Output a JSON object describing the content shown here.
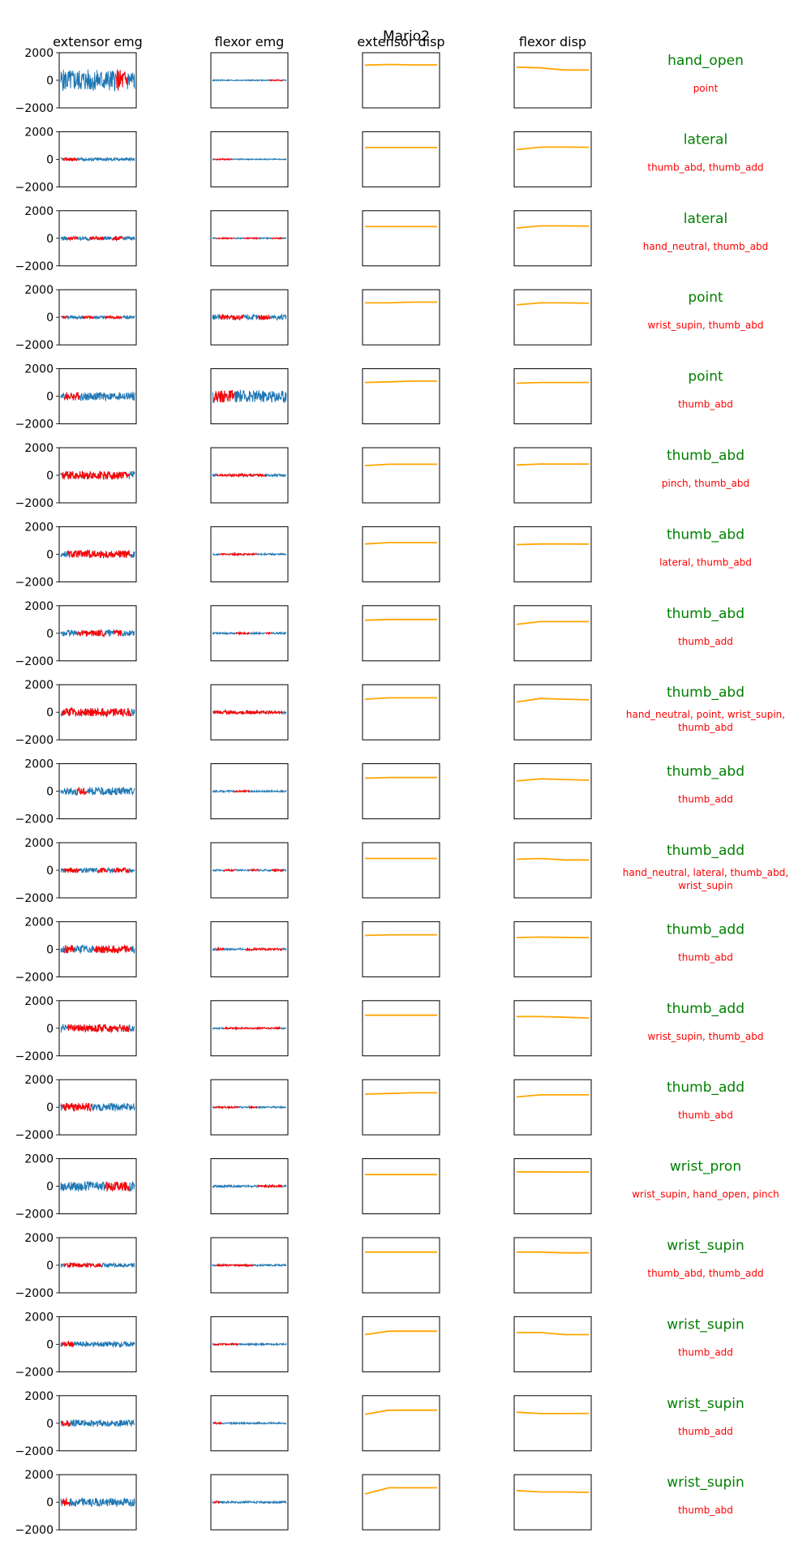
{
  "figure": {
    "title": "Mario2",
    "column_titles": [
      "extensor emg",
      "flexor emg",
      "extensor disp",
      "flexor disp"
    ]
  },
  "chart_data": {
    "type": "line",
    "title": "Mario2",
    "layout": "small-multiples grid, 19 rows x 4 columns plus per-row text annotations",
    "columns": [
      "extensor emg",
      "flexor emg",
      "extensor disp",
      "flexor disp"
    ],
    "ylim": [
      -2000,
      2000
    ],
    "yticks": [
      2000,
      0,
      -2000
    ],
    "ytick_labels": [
      "2000",
      "0",
      "−2000"
    ],
    "y_axis_shown_on": "extensor emg",
    "series_colors": {
      "emg": "#1f77b4",
      "emg_highlight": "#ff0000",
      "disp": "#ffa500",
      "predicted_label": "#008000",
      "other_labels": "#ff0000"
    },
    "rows": [
      {
        "predicted": "hand_open",
        "labels": "point",
        "ext_emg": {
          "amp": 800,
          "red": [
            [
              0.75,
              0.9
            ]
          ]
        },
        "flx_emg": {
          "amp": 40,
          "red": [
            [
              0.78,
              0.95
            ]
          ]
        },
        "ext_disp": [
          1100,
          1150,
          1120,
          1120
        ],
        "flx_disp": [
          950,
          900,
          750,
          750
        ]
      },
      {
        "predicted": "lateral",
        "labels": "thumb_abd, thumb_add",
        "ext_emg": {
          "amp": 120,
          "red": [
            [
              0.03,
              0.22
            ]
          ]
        },
        "flx_emg": {
          "amp": 40,
          "red": [
            [
              0.03,
              0.26
            ]
          ]
        },
        "ext_disp": [
          850,
          850,
          850,
          850
        ],
        "flx_disp": [
          700,
          880,
          880,
          870
        ]
      },
      {
        "predicted": "lateral",
        "labels": "hand_neutral, thumb_abd",
        "ext_emg": {
          "amp": 140,
          "red": [
            [
              0.1,
              0.22
            ],
            [
              0.4,
              0.58
            ],
            [
              0.7,
              0.85
            ]
          ]
        },
        "flx_emg": {
          "amp": 40,
          "red": [
            [
              0.05,
              0.3
            ],
            [
              0.42,
              0.62
            ],
            [
              0.8,
              0.95
            ]
          ]
        },
        "ext_disp": [
          850,
          850,
          850,
          850
        ],
        "flx_disp": [
          750,
          900,
          900,
          880
        ]
      },
      {
        "predicted": "point",
        "labels": "wrist_supin, thumb_abd",
        "ext_emg": {
          "amp": 110,
          "red": [
            [
              0.02,
              0.08
            ],
            [
              0.3,
              0.45
            ],
            [
              0.6,
              0.82
            ]
          ]
        },
        "flx_emg": {
          "amp": 200,
          "red": [
            [
              0.1,
              0.42
            ],
            [
              0.62,
              0.78
            ]
          ]
        },
        "ext_disp": [
          1050,
          1050,
          1100,
          1100
        ],
        "flx_disp": [
          900,
          1050,
          1050,
          1020
        ]
      },
      {
        "predicted": "point",
        "labels": "thumb_abd",
        "ext_emg": {
          "amp": 300,
          "red": [
            [
              0.05,
              0.25
            ]
          ]
        },
        "flx_emg": {
          "amp": 450,
          "red": [
            [
              0.02,
              0.3
            ]
          ]
        },
        "ext_disp": [
          1000,
          1050,
          1100,
          1100
        ],
        "flx_disp": [
          950,
          1000,
          1000,
          1000
        ]
      },
      {
        "predicted": "thumb_abd",
        "labels": "pinch, thumb_abd",
        "ext_emg": {
          "amp": 300,
          "red": [
            [
              0.02,
              0.92
            ]
          ]
        },
        "flx_emg": {
          "amp": 90,
          "red": [
            [
              0.05,
              0.72
            ]
          ]
        },
        "ext_disp": [
          700,
          800,
          800,
          800
        ],
        "flx_disp": [
          750,
          820,
          820,
          820
        ]
      },
      {
        "predicted": "thumb_abd",
        "labels": "lateral, thumb_abd",
        "ext_emg": {
          "amp": 280,
          "red": [
            [
              0.1,
              0.95
            ]
          ]
        },
        "flx_emg": {
          "amp": 60,
          "red": [
            [
              0.1,
              0.6
            ]
          ]
        },
        "ext_disp": [
          750,
          850,
          850,
          850
        ],
        "flx_disp": [
          700,
          750,
          750,
          740
        ]
      },
      {
        "predicted": "thumb_abd",
        "labels": "thumb_add",
        "ext_emg": {
          "amp": 230,
          "red": [
            [
              0.22,
              0.6
            ],
            [
              0.72,
              0.82
            ]
          ]
        },
        "flx_emg": {
          "amp": 60,
          "red": [
            [
              0.32,
              0.5
            ],
            [
              0.72,
              0.8
            ]
          ]
        },
        "ext_disp": [
          950,
          1000,
          1000,
          1000
        ],
        "flx_disp": [
          650,
          850,
          850,
          850
        ]
      },
      {
        "predicted": "thumb_abd",
        "labels": "hand_neutral, point, wrist_supin, thumb_abd",
        "ext_emg": {
          "amp": 300,
          "red": [
            [
              0.02,
              0.95
            ]
          ]
        },
        "flx_emg": {
          "amp": 120,
          "red": [
            [
              0.02,
              0.95
            ]
          ]
        },
        "ext_disp": [
          950,
          1050,
          1050,
          1050
        ],
        "flx_disp": [
          750,
          1000,
          950,
          900
        ]
      },
      {
        "predicted": "thumb_abd",
        "labels": "thumb_add",
        "ext_emg": {
          "amp": 280,
          "red": [
            [
              0.22,
              0.35
            ]
          ]
        },
        "flx_emg": {
          "amp": 60,
          "red": [
            [
              0.3,
              0.5
            ]
          ]
        },
        "ext_disp": [
          950,
          1000,
          1000,
          1000
        ],
        "flx_disp": [
          750,
          900,
          850,
          800
        ]
      },
      {
        "predicted": "thumb_add",
        "labels": "hand_neutral, lateral, thumb_abd, wrist_supin",
        "ext_emg": {
          "amp": 180,
          "red": [
            [
              0.05,
              0.25
            ],
            [
              0.5,
              0.62
            ],
            [
              0.72,
              0.92
            ]
          ]
        },
        "flx_emg": {
          "amp": 60,
          "red": [
            [
              0.15,
              0.32
            ],
            [
              0.5,
              0.62
            ],
            [
              0.8,
              0.95
            ]
          ]
        },
        "ext_disp": [
          850,
          850,
          850,
          850
        ],
        "flx_disp": [
          800,
          850,
          750,
          750
        ]
      },
      {
        "predicted": "thumb_add",
        "labels": "thumb_abd",
        "ext_emg": {
          "amp": 280,
          "red": [
            [
              0.05,
              0.18
            ],
            [
              0.45,
              0.95
            ]
          ]
        },
        "flx_emg": {
          "amp": 80,
          "red": [
            [
              0.05,
              0.15
            ],
            [
              0.45,
              0.95
            ]
          ]
        },
        "ext_disp": [
          1000,
          1050,
          1050,
          1050
        ],
        "flx_disp": [
          850,
          880,
          860,
          850
        ]
      },
      {
        "predicted": "thumb_add",
        "labels": "wrist_supin, thumb_abd",
        "ext_emg": {
          "amp": 280,
          "red": [
            [
              0.1,
              0.92
            ]
          ]
        },
        "flx_emg": {
          "amp": 60,
          "red": [
            [
              0.15,
              0.92
            ]
          ]
        },
        "ext_disp": [
          950,
          950,
          950,
          950
        ],
        "flx_disp": [
          850,
          850,
          800,
          750
        ]
      },
      {
        "predicted": "thumb_add",
        "labels": "thumb_abd",
        "ext_emg": {
          "amp": 300,
          "red": [
            [
              0.02,
              0.42
            ]
          ]
        },
        "flx_emg": {
          "amp": 60,
          "red": [
            [
              0.02,
              0.35
            ],
            [
              0.5,
              0.6
            ]
          ]
        },
        "ext_disp": [
          950,
          1000,
          1050,
          1050
        ],
        "flx_disp": [
          750,
          900,
          900,
          900
        ]
      },
      {
        "predicted": "wrist_pron",
        "labels": "wrist_supin, hand_open, pinch",
        "ext_emg": {
          "amp": 350,
          "red": [
            [
              0.6,
              0.93
            ]
          ]
        },
        "flx_emg": {
          "amp": 80,
          "red": [
            [
              0.62,
              0.95
            ]
          ]
        },
        "ext_disp": [
          850,
          850,
          850,
          850
        ],
        "flx_disp": [
          1050,
          1050,
          1030,
          1030
        ]
      },
      {
        "predicted": "wrist_supin",
        "labels": "thumb_abd, thumb_add",
        "ext_emg": {
          "amp": 150,
          "red": [
            [
              0.05,
              0.55
            ]
          ]
        },
        "flx_emg": {
          "amp": 60,
          "red": [
            [
              0.05,
              0.55
            ]
          ]
        },
        "ext_disp": [
          950,
          950,
          950,
          950
        ],
        "flx_disp": [
          950,
          950,
          900,
          900
        ]
      },
      {
        "predicted": "wrist_supin",
        "labels": "thumb_add",
        "ext_emg": {
          "amp": 200,
          "red": [
            [
              0.02,
              0.18
            ]
          ]
        },
        "flx_emg": {
          "amp": 60,
          "red": [
            [
              0.02,
              0.35
            ]
          ]
        },
        "ext_disp": [
          700,
          950,
          950,
          950
        ],
        "flx_disp": [
          850,
          850,
          700,
          700
        ]
      },
      {
        "predicted": "wrist_supin",
        "labels": "thumb_add",
        "ext_emg": {
          "amp": 250,
          "red": [
            [
              0.02,
              0.12
            ]
          ]
        },
        "flx_emg": {
          "amp": 60,
          "red": [
            [
              0.02,
              0.12
            ]
          ]
        },
        "ext_disp": [
          650,
          950,
          950,
          950
        ],
        "flx_disp": [
          800,
          700,
          700,
          720
        ]
      },
      {
        "predicted": "wrist_supin",
        "labels": "thumb_abd",
        "ext_emg": {
          "amp": 300,
          "red": [
            [
              0.02,
              0.12
            ]
          ]
        },
        "flx_emg": {
          "amp": 80,
          "red": [
            [
              0.02,
              0.1
            ]
          ]
        },
        "ext_disp": [
          600,
          1050,
          1050,
          1050
        ],
        "flx_disp": [
          850,
          750,
          750,
          720
        ]
      }
    ]
  }
}
